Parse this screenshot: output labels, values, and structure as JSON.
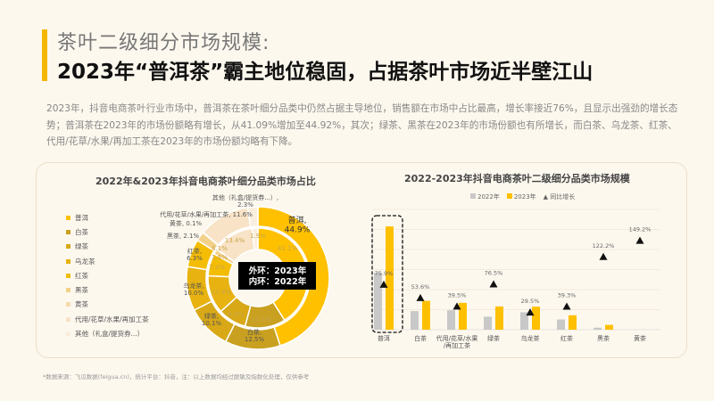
{
  "header": {
    "subtitle": "茶叶二级细分市场规模:",
    "title": "2023年“普洱茶”霸主地位稳固，占据茶叶市场近半壁江山"
  },
  "description": "2023年，抖音电商茶叶行业市场中，普洱茶在茶叶细分品类中仍然占据主导地位，销售额在市场中占比最高，增长率接近76%，且显示出强劲的增长态势；普洱茶在2023年的市场份额略有增长，从41.09%增加至44.92%，其次；绿茶、黑茶在2023年的市场份额也有所增长，而白茶、乌龙茶、红茶、代用/花草/水果/再加工茶在2023年的市场份额均略有下降。",
  "footer": "*数据来源：飞瓜数据(feigua.cn)，统计平台：抖音，注：以上数据均经过脱敏及指数化处理，仅供参考",
  "colors": {
    "accent": "#F5B800",
    "bar2022": "#C8C8C8",
    "bar2023": "#FFC000"
  },
  "chart_data": [
    {
      "type": "pie",
      "subtype": "double-donut",
      "title": "2022年&2023年抖音电商茶叶细分品类市场占比",
      "center_label": [
        "外环：2023年",
        "内环：2022年"
      ],
      "categories": [
        "普洱",
        "白茶",
        "绿茶",
        "乌龙茶",
        "红茶",
        "黑茶",
        "黄茶",
        "代用/花草/水果/再加工茶",
        "其他（礼盒/提货券...）"
      ],
      "colors": [
        "#FFC000",
        "#C9A020",
        "#D8A817",
        "#E8B310",
        "#F4BD05",
        "#F2D18A",
        "#F5DBB0",
        "#F8E3C6",
        "#FAEEDD"
      ],
      "series": [
        {
          "name": "2023年",
          "ring": "outer",
          "values": [
            44.9,
            12.5,
            10.1,
            10.0,
            6.3,
            2.1,
            0.1,
            11.6,
            2.3
          ],
          "labels": [
            "普洱,\n44.9%",
            "白茶,\n12.5%",
            "绿茶,\n10.1%",
            "乌龙茶,\n10.0%",
            "红茶,\n6.3%",
            "黑茶, 2.1%",
            "黄茶, 0.1%",
            "代用/花草/水果/再加工茶, 11.6%",
            "其他（礼盒/提货券...）,\n2.3%"
          ]
        },
        {
          "name": "2022年",
          "ring": "inner",
          "values": [
            41.1,
            13.1,
            9.2,
            12.4,
            7.3,
            1.6,
            0.1,
            13.4,
            1.9
          ],
          "labels": [
            "41.1%",
            "13.1%",
            "9.2%",
            "12.4%",
            "7.3%",
            "1.6%",
            "0.1%",
            "13.4%",
            "1.9%"
          ]
        }
      ],
      "legend": "left"
    },
    {
      "type": "bar",
      "title": "2022-2023年抖音电商茶叶二级细分品类市场规模",
      "categories": [
        "普洱",
        "白茶",
        "代用/花草/水果\n/再加工茶",
        "绿茶",
        "乌龙茶",
        "红茶",
        "黑茶",
        "黄茶"
      ],
      "series": [
        {
          "name": "2022年",
          "values": [
            2.85,
            0.93,
            0.97,
            0.65,
            0.87,
            0.51,
            0.1,
            0
          ]
        },
        {
          "name": "2023年",
          "values": [
            5.15,
            1.44,
            1.34,
            1.16,
            1.15,
            0.72,
            0.24,
            0
          ]
        },
        {
          "name": "同比增长",
          "type": "scatter",
          "marker": "triangle",
          "axis": "secondary",
          "values": [
            75.9,
            53.6,
            39.5,
            76.5,
            29.5,
            39.3,
            122.2,
            149.2
          ],
          "labels": [
            "75.9%",
            "53.6%",
            "39.5%",
            "76.5%",
            "29.5%",
            "39.3%",
            "122.2%",
            "149.2%"
          ]
        }
      ],
      "ylim": [
        0,
        6
      ],
      "y2lim": [
        0,
        200
      ],
      "grid": true,
      "legend": "top",
      "highlight": "普洱"
    }
  ]
}
